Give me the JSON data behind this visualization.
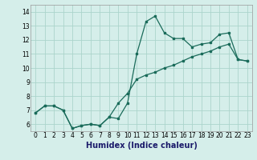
{
  "title": "",
  "xlabel": "Humidex (Indice chaleur)",
  "xlim": [
    -0.5,
    23.5
  ],
  "ylim": [
    5.5,
    14.5
  ],
  "xticks": [
    0,
    1,
    2,
    3,
    4,
    5,
    6,
    7,
    8,
    9,
    10,
    11,
    12,
    13,
    14,
    15,
    16,
    17,
    18,
    19,
    20,
    21,
    22,
    23
  ],
  "yticks": [
    6,
    7,
    8,
    9,
    10,
    11,
    12,
    13,
    14
  ],
  "background_color": "#d5eeea",
  "grid_color": "#acd4cc",
  "line_color": "#1a6b5a",
  "line1_x": [
    0,
    1,
    2,
    3,
    4,
    5,
    6,
    7,
    8,
    9,
    10,
    11,
    12,
    13,
    14,
    15,
    16,
    17,
    18,
    19,
    20,
    21,
    22,
    23
  ],
  "line1_y": [
    6.8,
    7.3,
    7.3,
    7.0,
    5.7,
    5.9,
    6.0,
    5.9,
    6.5,
    6.4,
    7.5,
    11.0,
    13.3,
    13.7,
    12.5,
    12.1,
    12.1,
    11.5,
    11.7,
    11.8,
    12.4,
    12.5,
    10.6,
    10.5
  ],
  "line2_x": [
    0,
    1,
    2,
    3,
    4,
    5,
    6,
    7,
    8,
    9,
    10,
    11,
    12,
    13,
    14,
    15,
    16,
    17,
    18,
    19,
    20,
    21,
    22,
    23
  ],
  "line2_y": [
    6.8,
    7.3,
    7.3,
    7.0,
    5.7,
    5.9,
    6.0,
    5.9,
    6.5,
    7.5,
    8.2,
    9.2,
    9.5,
    9.7,
    10.0,
    10.2,
    10.5,
    10.8,
    11.0,
    11.2,
    11.5,
    11.7,
    10.6,
    10.5
  ],
  "xlabel_color": "#1a1a6a",
  "xlabel_fontsize": 7,
  "tick_fontsize": 5.5
}
